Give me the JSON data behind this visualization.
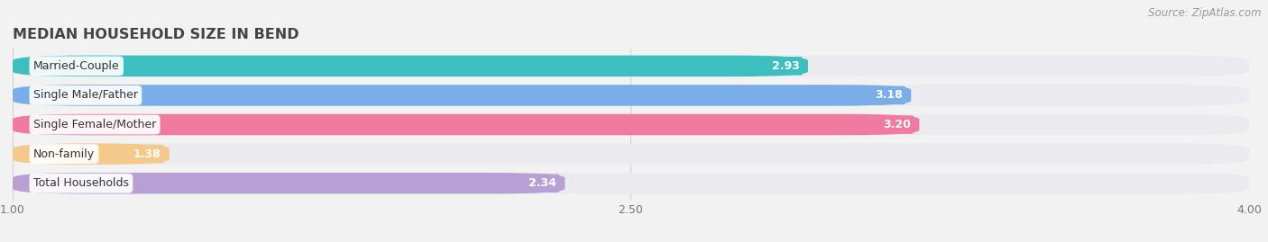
{
  "title": "MEDIAN HOUSEHOLD SIZE IN BEND",
  "source": "Source: ZipAtlas.com",
  "categories": [
    "Married-Couple",
    "Single Male/Father",
    "Single Female/Mother",
    "Non-family",
    "Total Households"
  ],
  "values": [
    2.93,
    3.18,
    3.2,
    1.38,
    2.34
  ],
  "bar_colors": [
    "#3dbfbf",
    "#7aaee8",
    "#f07aa0",
    "#f5c98a",
    "#b89fd4"
  ],
  "background_color": "#f2f2f2",
  "bar_bg_color": "#e8e8ec",
  "xlim": [
    1.0,
    4.0
  ],
  "xticks": [
    1.0,
    2.5,
    4.0
  ],
  "title_fontsize": 11.5,
  "label_fontsize": 9,
  "value_fontsize": 9,
  "source_fontsize": 8.5
}
